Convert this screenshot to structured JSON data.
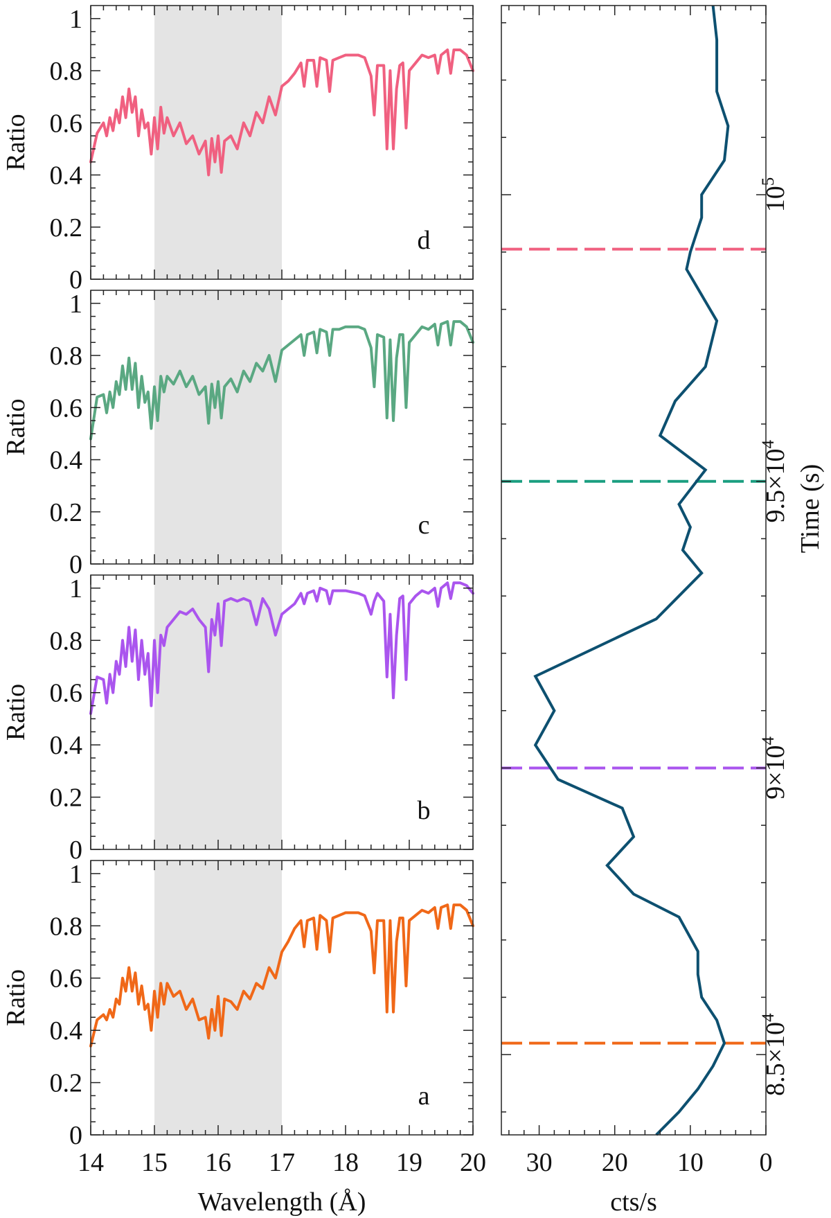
{
  "chart_data": [
    {
      "type": "line",
      "panel": "d",
      "tag": "d",
      "color": "#f06080",
      "xlabel": "Wavelength (Å)",
      "ylabel": "Ratio",
      "xlim": [
        14,
        20
      ],
      "ylim": [
        0,
        1.05
      ],
      "xticks": [
        "14",
        "15",
        "16",
        "17",
        "18",
        "19",
        "20"
      ],
      "yticks": [
        "0",
        "0.2",
        "0.4",
        "0.6",
        "0.8",
        "1"
      ],
      "shaded_band": [
        15,
        17
      ],
      "x": [
        14.0,
        14.1,
        14.2,
        14.25,
        14.3,
        14.35,
        14.4,
        14.45,
        14.5,
        14.55,
        14.6,
        14.65,
        14.7,
        14.75,
        14.8,
        14.85,
        14.9,
        14.95,
        15.0,
        15.05,
        15.1,
        15.15,
        15.2,
        15.3,
        15.4,
        15.5,
        15.6,
        15.7,
        15.8,
        15.85,
        15.9,
        15.95,
        16.0,
        16.05,
        16.1,
        16.2,
        16.3,
        16.4,
        16.5,
        16.6,
        16.7,
        16.8,
        16.9,
        17.0,
        17.1,
        17.2,
        17.3,
        17.35,
        17.4,
        17.5,
        17.55,
        17.6,
        17.7,
        17.75,
        17.8,
        17.9,
        18.0,
        18.2,
        18.3,
        18.4,
        18.45,
        18.5,
        18.6,
        18.65,
        18.7,
        18.75,
        18.8,
        18.85,
        18.9,
        18.95,
        19.0,
        19.1,
        19.2,
        19.3,
        19.4,
        19.45,
        19.5,
        19.6,
        19.65,
        19.7,
        19.8,
        19.9,
        20.0
      ],
      "y": [
        0.45,
        0.56,
        0.6,
        0.55,
        0.62,
        0.57,
        0.65,
        0.6,
        0.7,
        0.62,
        0.73,
        0.64,
        0.7,
        0.55,
        0.65,
        0.58,
        0.6,
        0.48,
        0.62,
        0.5,
        0.66,
        0.56,
        0.62,
        0.55,
        0.6,
        0.52,
        0.55,
        0.48,
        0.53,
        0.4,
        0.54,
        0.45,
        0.55,
        0.41,
        0.53,
        0.55,
        0.5,
        0.6,
        0.55,
        0.64,
        0.6,
        0.7,
        0.63,
        0.74,
        0.76,
        0.79,
        0.83,
        0.74,
        0.84,
        0.84,
        0.74,
        0.85,
        0.84,
        0.72,
        0.84,
        0.85,
        0.86,
        0.86,
        0.85,
        0.78,
        0.63,
        0.82,
        0.82,
        0.5,
        0.8,
        0.5,
        0.73,
        0.82,
        0.83,
        0.58,
        0.8,
        0.83,
        0.86,
        0.85,
        0.86,
        0.79,
        0.86,
        0.88,
        0.79,
        0.88,
        0.88,
        0.86,
        0.8
      ]
    },
    {
      "type": "line",
      "panel": "c",
      "tag": "c",
      "color": "#5aa882",
      "xlabel": "Wavelength (Å)",
      "ylabel": "Ratio",
      "xlim": [
        14,
        20
      ],
      "ylim": [
        0,
        1.05
      ],
      "xticks": [
        "14",
        "15",
        "16",
        "17",
        "18",
        "19",
        "20"
      ],
      "yticks": [
        "0",
        "0.2",
        "0.4",
        "0.6",
        "0.8",
        "1"
      ],
      "shaded_band": [
        15,
        17
      ],
      "x": [
        14.0,
        14.1,
        14.2,
        14.25,
        14.3,
        14.35,
        14.4,
        14.45,
        14.5,
        14.55,
        14.6,
        14.65,
        14.7,
        14.75,
        14.8,
        14.85,
        14.9,
        14.95,
        15.0,
        15.05,
        15.1,
        15.15,
        15.2,
        15.3,
        15.4,
        15.5,
        15.6,
        15.7,
        15.8,
        15.85,
        15.9,
        15.95,
        16.0,
        16.05,
        16.1,
        16.2,
        16.3,
        16.4,
        16.5,
        16.6,
        16.7,
        16.8,
        16.9,
        17.0,
        17.1,
        17.2,
        17.3,
        17.35,
        17.4,
        17.5,
        17.55,
        17.6,
        17.7,
        17.75,
        17.8,
        17.9,
        18.0,
        18.2,
        18.3,
        18.4,
        18.45,
        18.5,
        18.6,
        18.65,
        18.7,
        18.75,
        18.8,
        18.85,
        18.9,
        18.95,
        19.0,
        19.1,
        19.2,
        19.3,
        19.4,
        19.45,
        19.5,
        19.6,
        19.65,
        19.7,
        19.8,
        19.9,
        20.0
      ],
      "y": [
        0.48,
        0.64,
        0.65,
        0.58,
        0.66,
        0.6,
        0.7,
        0.65,
        0.76,
        0.67,
        0.79,
        0.67,
        0.77,
        0.6,
        0.72,
        0.62,
        0.66,
        0.52,
        0.68,
        0.55,
        0.72,
        0.66,
        0.72,
        0.69,
        0.74,
        0.68,
        0.72,
        0.65,
        0.68,
        0.54,
        0.69,
        0.6,
        0.7,
        0.56,
        0.68,
        0.71,
        0.66,
        0.74,
        0.7,
        0.77,
        0.74,
        0.8,
        0.7,
        0.82,
        0.84,
        0.86,
        0.88,
        0.8,
        0.88,
        0.89,
        0.81,
        0.9,
        0.89,
        0.8,
        0.9,
        0.9,
        0.91,
        0.91,
        0.9,
        0.83,
        0.68,
        0.88,
        0.87,
        0.56,
        0.86,
        0.55,
        0.79,
        0.88,
        0.88,
        0.6,
        0.85,
        0.88,
        0.91,
        0.9,
        0.92,
        0.84,
        0.92,
        0.93,
        0.84,
        0.93,
        0.93,
        0.91,
        0.85
      ]
    },
    {
      "type": "line",
      "panel": "b",
      "tag": "b",
      "color": "#aa55ee",
      "xlabel": "Wavelength (Å)",
      "ylabel": "Ratio",
      "xlim": [
        14,
        20
      ],
      "ylim": [
        0,
        1.05
      ],
      "xticks": [
        "14",
        "15",
        "16",
        "17",
        "18",
        "19",
        "20"
      ],
      "yticks": [
        "0",
        "0.2",
        "0.4",
        "0.6",
        "0.8",
        "1"
      ],
      "shaded_band": [
        15,
        17
      ],
      "x": [
        14.0,
        14.1,
        14.2,
        14.25,
        14.3,
        14.35,
        14.4,
        14.45,
        14.5,
        14.55,
        14.6,
        14.65,
        14.7,
        14.75,
        14.8,
        14.85,
        14.9,
        14.95,
        15.0,
        15.05,
        15.1,
        15.15,
        15.2,
        15.3,
        15.4,
        15.5,
        15.6,
        15.7,
        15.8,
        15.85,
        15.9,
        15.95,
        16.0,
        16.05,
        16.1,
        16.2,
        16.3,
        16.4,
        16.5,
        16.6,
        16.7,
        16.8,
        16.9,
        17.0,
        17.1,
        17.2,
        17.3,
        17.35,
        17.4,
        17.5,
        17.55,
        17.6,
        17.7,
        17.75,
        17.8,
        17.9,
        18.0,
        18.2,
        18.3,
        18.4,
        18.45,
        18.5,
        18.6,
        18.65,
        18.7,
        18.75,
        18.8,
        18.85,
        18.9,
        18.95,
        19.0,
        19.1,
        19.2,
        19.3,
        19.4,
        19.45,
        19.5,
        19.6,
        19.65,
        19.7,
        19.8,
        19.9,
        20.0
      ],
      "y": [
        0.52,
        0.66,
        0.65,
        0.56,
        0.67,
        0.6,
        0.72,
        0.67,
        0.8,
        0.7,
        0.85,
        0.72,
        0.84,
        0.65,
        0.8,
        0.67,
        0.75,
        0.55,
        0.8,
        0.6,
        0.82,
        0.78,
        0.85,
        0.88,
        0.91,
        0.9,
        0.92,
        0.88,
        0.85,
        0.68,
        0.88,
        0.82,
        0.94,
        0.78,
        0.95,
        0.96,
        0.95,
        0.96,
        0.95,
        0.86,
        0.96,
        0.92,
        0.82,
        0.9,
        0.92,
        0.94,
        0.98,
        0.94,
        0.98,
        0.99,
        0.95,
        1.0,
        0.99,
        0.94,
        0.99,
        0.99,
        0.99,
        0.98,
        0.97,
        0.9,
        0.95,
        0.98,
        0.95,
        0.66,
        0.9,
        0.58,
        0.82,
        0.96,
        0.97,
        0.65,
        0.94,
        0.97,
        0.99,
        0.98,
        1.0,
        0.93,
        1.0,
        1.02,
        0.96,
        1.02,
        1.02,
        1.01,
        0.98
      ]
    },
    {
      "type": "line",
      "panel": "a",
      "tag": "a",
      "color": "#f06818",
      "xlabel": "Wavelength (Å)",
      "ylabel": "Ratio",
      "xlim": [
        14,
        20
      ],
      "ylim": [
        0,
        1.05
      ],
      "xticks": [
        "14",
        "15",
        "16",
        "17",
        "18",
        "19",
        "20"
      ],
      "yticks": [
        "0",
        "0.2",
        "0.4",
        "0.6",
        "0.8",
        "1"
      ],
      "shaded_band": [
        15,
        17
      ],
      "x": [
        14.0,
        14.1,
        14.2,
        14.25,
        14.3,
        14.35,
        14.4,
        14.45,
        14.5,
        14.55,
        14.6,
        14.65,
        14.7,
        14.75,
        14.8,
        14.85,
        14.9,
        14.95,
        15.0,
        15.05,
        15.1,
        15.15,
        15.2,
        15.3,
        15.4,
        15.5,
        15.6,
        15.7,
        15.8,
        15.85,
        15.9,
        15.95,
        16.0,
        16.05,
        16.1,
        16.2,
        16.3,
        16.4,
        16.5,
        16.6,
        16.7,
        16.8,
        16.9,
        17.0,
        17.1,
        17.2,
        17.3,
        17.35,
        17.4,
        17.5,
        17.55,
        17.6,
        17.7,
        17.75,
        17.8,
        17.9,
        18.0,
        18.2,
        18.3,
        18.4,
        18.45,
        18.5,
        18.6,
        18.65,
        18.7,
        18.75,
        18.8,
        18.85,
        18.9,
        18.95,
        19.0,
        19.1,
        19.2,
        19.3,
        19.4,
        19.45,
        19.5,
        19.6,
        19.65,
        19.7,
        19.8,
        19.9,
        20.0
      ],
      "y": [
        0.34,
        0.44,
        0.46,
        0.44,
        0.48,
        0.45,
        0.52,
        0.5,
        0.6,
        0.55,
        0.64,
        0.55,
        0.62,
        0.5,
        0.57,
        0.48,
        0.5,
        0.4,
        0.55,
        0.45,
        0.58,
        0.5,
        0.58,
        0.53,
        0.55,
        0.48,
        0.52,
        0.44,
        0.45,
        0.37,
        0.48,
        0.4,
        0.53,
        0.38,
        0.52,
        0.51,
        0.48,
        0.55,
        0.52,
        0.58,
        0.56,
        0.64,
        0.6,
        0.7,
        0.74,
        0.79,
        0.82,
        0.72,
        0.82,
        0.83,
        0.71,
        0.84,
        0.82,
        0.7,
        0.83,
        0.84,
        0.85,
        0.85,
        0.84,
        0.78,
        0.62,
        0.82,
        0.82,
        0.47,
        0.82,
        0.47,
        0.74,
        0.83,
        0.83,
        0.57,
        0.82,
        0.84,
        0.86,
        0.85,
        0.87,
        0.79,
        0.87,
        0.88,
        0.79,
        0.88,
        0.88,
        0.86,
        0.8
      ]
    },
    {
      "type": "line",
      "panel": "lightcurve",
      "color": "#0d5070",
      "xlabel": "cts/s",
      "ylabel": "Time (s)",
      "xlim": [
        35,
        0
      ],
      "ylim": [
        83600,
        103300
      ],
      "xticks": [
        "30",
        "20",
        "10",
        "0"
      ],
      "ytick_values": [
        85000,
        90000,
        95000,
        100000
      ],
      "yticks": [
        "8.5×10",
        "9×10",
        "9.5×10",
        "10"
      ],
      "ytick_exponents": [
        "4",
        "4",
        "4",
        "5"
      ],
      "x": [
        14.5,
        11.5,
        9.0,
        7.0,
        5.5,
        6.5,
        8.5,
        9.0,
        9.0,
        11.5,
        17.5,
        21.0,
        17.5,
        19.0,
        27.5,
        30.5,
        28.0,
        30.5,
        14.5,
        11.5,
        8.5,
        11.0,
        10.0,
        11.5,
        8.0,
        14.0,
        12.0,
        8.0,
        6.5,
        10.5,
        10.0,
        8.5,
        8.5,
        5.5,
        5.0,
        6.5,
        6.5,
        7.0
      ],
      "y": [
        83600,
        84000,
        84400,
        84800,
        85200,
        85600,
        86000,
        86400,
        86800,
        87400,
        87800,
        88300,
        88800,
        89300,
        89800,
        90400,
        91000,
        91600,
        92600,
        93000,
        93400,
        93800,
        94200,
        94600,
        95200,
        95800,
        96400,
        97000,
        97800,
        98700,
        99000,
        99600,
        100000,
        100600,
        101200,
        101800,
        102700,
        103300
      ]
    }
  ],
  "markers": [
    {
      "time": 85200,
      "color": "#f06818",
      "panel": "a"
    },
    {
      "time": 90000,
      "color": "#aa55ee",
      "panel": "b"
    },
    {
      "time": 95000,
      "color": "#1a9e80",
      "panel": "c"
    },
    {
      "time": 99050,
      "color": "#f06080",
      "panel": "d"
    }
  ]
}
